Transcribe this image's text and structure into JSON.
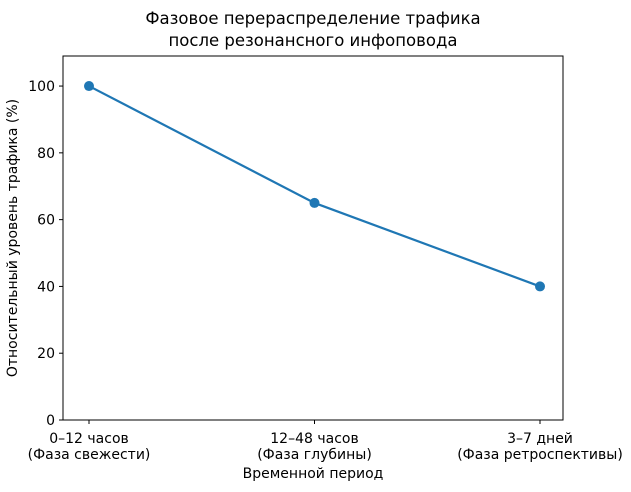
{
  "chart_data": {
    "type": "line",
    "title": "Фазовое перераспределение трафика после резонансного инфоповода",
    "title_lines": [
      "Фазовое перераспределение трафика",
      "после резонансного инфоповода"
    ],
    "xlabel": "Временной период",
    "ylabel": "Относительный уровень трафика (%)",
    "categories": [
      "0–12 часов (Фаза свежести)",
      "12–48 часов (Фаза глубины)",
      "3–7 дней (Фаза ретроспективы)"
    ],
    "category_lines": [
      [
        "0–12 часов",
        "(Фаза свежести)"
      ],
      [
        "12–48 часов",
        "(Фаза глубины)"
      ],
      [
        "3–7 дней",
        "(Фаза ретроспективы)"
      ]
    ],
    "values": [
      100,
      65,
      40
    ],
    "yticks": [
      0,
      20,
      40,
      60,
      80,
      100
    ],
    "ylim": [
      0,
      109
    ],
    "grid": false,
    "legend": null,
    "marker": "circle",
    "line_color": "#1f77b4",
    "axis_color": "#000000",
    "background": "#ffffff"
  }
}
